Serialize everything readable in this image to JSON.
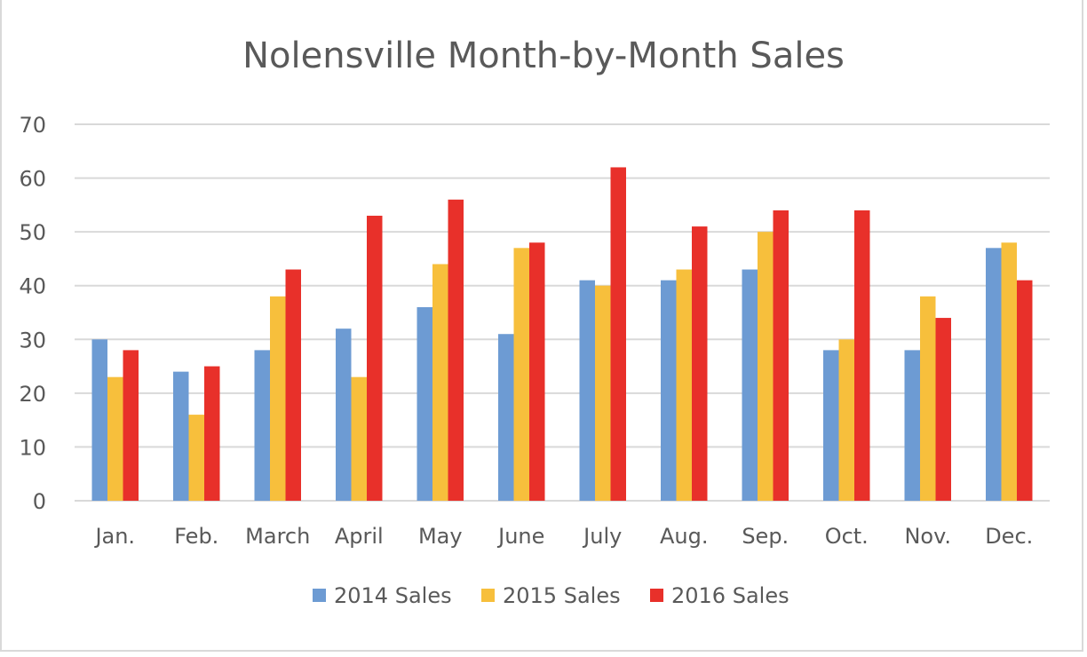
{
  "chart_data": {
    "type": "bar",
    "title": "Nolensville Month-by-Month Sales",
    "xlabel": "",
    "ylabel": "",
    "categories": [
      "Jan.",
      "Feb.",
      "March",
      "April",
      "May",
      "June",
      "July",
      "Aug.",
      "Sep.",
      "Oct.",
      "Nov.",
      "Dec."
    ],
    "series": [
      {
        "name": "2014 Sales",
        "color": "#6d9bd3",
        "values": [
          30,
          24,
          28,
          32,
          36,
          31,
          41,
          41,
          43,
          28,
          28,
          47
        ]
      },
      {
        "name": "2015 Sales",
        "color": "#f7bf3c",
        "values": [
          23,
          16,
          38,
          23,
          44,
          47,
          40,
          43,
          50,
          30,
          38,
          48
        ]
      },
      {
        "name": "2016 Sales",
        "color": "#e8302a",
        "values": [
          28,
          25,
          43,
          53,
          56,
          48,
          62,
          51,
          54,
          54,
          34,
          41
        ]
      }
    ],
    "ylim": [
      0,
      70
    ],
    "yticks": [
      0,
      10,
      20,
      30,
      40,
      50,
      60,
      70
    ],
    "grid": true,
    "gridColor": "#d9d9d9",
    "legend": "bottom"
  }
}
